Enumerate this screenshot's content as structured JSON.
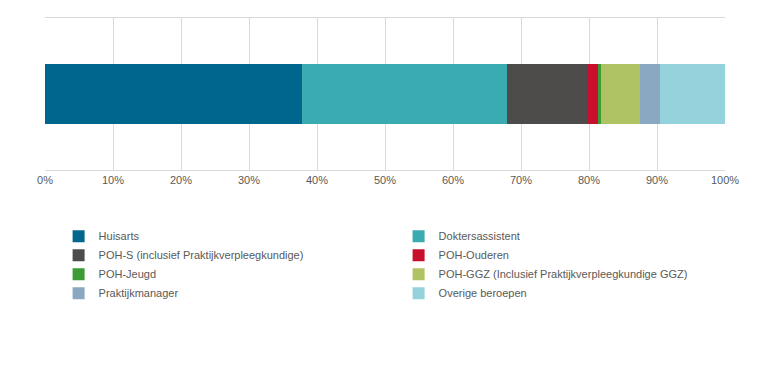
{
  "chart_data": {
    "type": "bar",
    "orientation": "horizontal",
    "stacked": true,
    "grid": true,
    "legend": "bottom",
    "tick_labels": "x",
    "categories": [
      null
    ],
    "series": [
      {
        "name": "Huisarts",
        "color": "#00668e",
        "values": [
          37.8
        ]
      },
      {
        "name": "Doktersassistent",
        "color": "#3aabb0",
        "values": [
          30.1
        ]
      },
      {
        "name": "POH-S (inclusief Praktijkverpleegkundige)",
        "color": "#4e4c4b",
        "values": [
          11.8
        ]
      },
      {
        "name": "POH-Ouderen",
        "color": "#c8102e",
        "values": [
          1.6
        ]
      },
      {
        "name": "POH-Jeugd",
        "color": "#3d9b35",
        "values": [
          0.5
        ]
      },
      {
        "name": "POH-GGZ (Inclusief Praktijkverpleegkundige GGZ)",
        "color": "#b0c364",
        "values": [
          5.7
        ]
      },
      {
        "name": "Praktijkmanager",
        "color": "#8aa8c2",
        "values": [
          2.9
        ]
      },
      {
        "name": "Overige beroepen",
        "color": "#94d3dc",
        "values": [
          9.6
        ]
      }
    ],
    "xlim": [
      0,
      100
    ],
    "xticks": [
      {
        "value": 0,
        "label": "0%"
      },
      {
        "value": 10,
        "label": "10%"
      },
      {
        "value": 20,
        "label": "20%"
      },
      {
        "value": 30,
        "label": "30%"
      },
      {
        "value": 40,
        "label": "40%"
      },
      {
        "value": 50,
        "label": "50%"
      },
      {
        "value": 60,
        "label": "60%"
      },
      {
        "value": 70,
        "label": "70%"
      },
      {
        "value": 80,
        "label": "80%"
      },
      {
        "value": 90,
        "label": "90%"
      },
      {
        "value": 100,
        "label": "100%"
      }
    ]
  }
}
